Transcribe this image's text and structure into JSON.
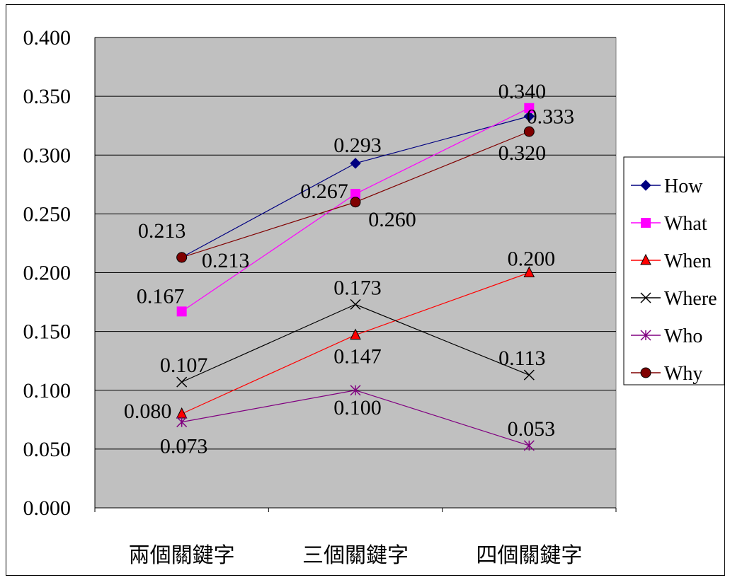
{
  "chart_data": {
    "type": "line",
    "categories": [
      "兩個關鍵字",
      "三個關鍵字",
      "四個關鍵字"
    ],
    "ylim": [
      0.0,
      0.4
    ],
    "yticks": [
      "0.000",
      "0.050",
      "0.100",
      "0.150",
      "0.200",
      "0.250",
      "0.300",
      "0.350",
      "0.400"
    ],
    "grid": true,
    "legend_position": "right",
    "plot_background": "#c0c0c0",
    "series": [
      {
        "name": "How",
        "values": [
          0.213,
          0.293,
          0.333
        ],
        "labels": [
          "",
          "0.293",
          "0.333"
        ],
        "color": "#000080",
        "marker": "diamond"
      },
      {
        "name": "What",
        "values": [
          0.167,
          0.267,
          0.34
        ],
        "labels": [
          "0.167",
          "0.267",
          "0.340"
        ],
        "color": "#ff00ff",
        "marker": "square"
      },
      {
        "name": "When",
        "values": [
          0.08,
          0.147,
          0.2
        ],
        "labels": [
          "0.080",
          "0.147",
          "0.200"
        ],
        "color": "#ff0000",
        "marker": "triangle"
      },
      {
        "name": "Where",
        "values": [
          0.107,
          0.173,
          0.113
        ],
        "labels": [
          "0.107",
          "0.173",
          "0.113"
        ],
        "color": "#000000",
        "marker": "x"
      },
      {
        "name": "Who",
        "values": [
          0.073,
          0.1,
          0.053
        ],
        "labels": [
          "0.073",
          "0.100",
          "0.053"
        ],
        "color": "#800080",
        "marker": "star"
      },
      {
        "name": "Why",
        "values": [
          0.213,
          0.26,
          0.32
        ],
        "labels": [
          "0.213",
          "0.260",
          "0.320"
        ],
        "color": "#800000",
        "marker": "circle"
      }
    ]
  }
}
